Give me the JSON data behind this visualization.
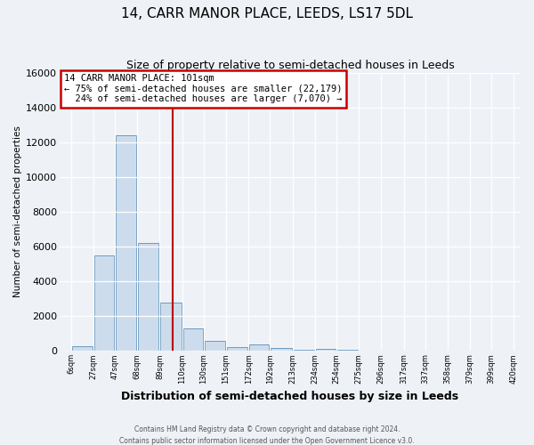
{
  "title": "14, CARR MANOR PLACE, LEEDS, LS17 5DL",
  "subtitle": "Size of property relative to semi-detached houses in Leeds",
  "xlabel": "Distribution of semi-detached houses by size in Leeds",
  "ylabel": "Number of semi-detached properties",
  "bar_color": "#cddcec",
  "bar_edge_color": "#6a9abf",
  "background_color": "#eef2f7",
  "grid_color": "#ffffff",
  "property_line_x": 101,
  "property_line_color": "#bb0000",
  "annotation_box_color": "#ffffff",
  "annotation_border_color": "#cc0000",
  "annotation_text_line1": "14 CARR MANOR PLACE: 101sqm",
  "annotation_text_line2": "← 75% of semi-detached houses are smaller (22,179)",
  "annotation_text_line3": "  24% of semi-detached houses are larger (7,070) →",
  "bin_edges": [
    6,
    27,
    47,
    68,
    89,
    110,
    130,
    151,
    172,
    192,
    213,
    234,
    254,
    275,
    296,
    317,
    337,
    358,
    379,
    399,
    420
  ],
  "bin_counts": [
    300,
    5500,
    12400,
    6200,
    2800,
    1300,
    600,
    220,
    370,
    160,
    80,
    100,
    60,
    0,
    0,
    0,
    0,
    0,
    0,
    0
  ],
  "ylim": [
    0,
    16000
  ],
  "yticks": [
    0,
    2000,
    4000,
    6000,
    8000,
    10000,
    12000,
    14000,
    16000
  ],
  "tick_labels": [
    "6sqm",
    "27sqm",
    "47sqm",
    "68sqm",
    "89sqm",
    "110sqm",
    "130sqm",
    "151sqm",
    "172sqm",
    "192sqm",
    "213sqm",
    "234sqm",
    "254sqm",
    "275sqm",
    "296sqm",
    "317sqm",
    "337sqm",
    "358sqm",
    "379sqm",
    "399sqm",
    "420sqm"
  ],
  "footer_line1": "Contains HM Land Registry data © Crown copyright and database right 2024.",
  "footer_line2": "Contains public sector information licensed under the Open Government Licence v3.0."
}
